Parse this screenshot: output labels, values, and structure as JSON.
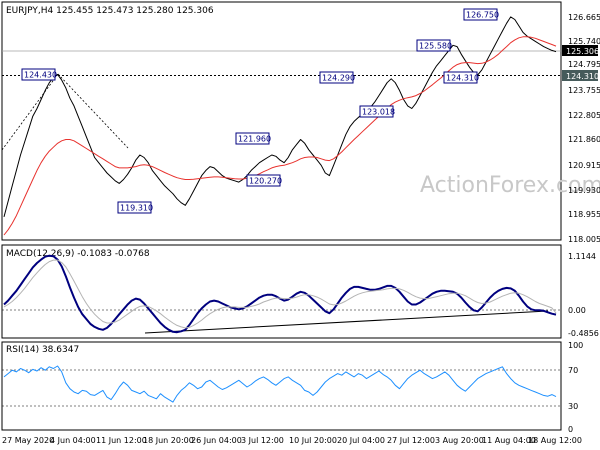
{
  "chart_data": [
    {
      "type": "candlestick",
      "title": "EURJPY,H4  125.455 125.473 125.280 125.306",
      "watermark": "ActionForex.com",
      "y_ticks": [
        "126.665",
        "125.740",
        "124.795",
        "123.755",
        "122.805",
        "121.860",
        "120.915",
        "119.930",
        "118.955",
        "118.005"
      ],
      "ylim": [
        118.005,
        126.665
      ],
      "current_price": "125.306",
      "support_level": "124.310",
      "annotations": [
        {
          "text": "124.430",
          "value": 124.43
        },
        {
          "text": "119.310",
          "value": 119.31
        },
        {
          "text": "121.960",
          "value": 121.96
        },
        {
          "text": "120.270",
          "value": 120.27
        },
        {
          "text": "124.290",
          "value": 124.29
        },
        {
          "text": "123.018",
          "value": 123.018
        },
        {
          "text": "125.580",
          "value": 125.58
        },
        {
          "text": "124.310",
          "value": 124.31
        },
        {
          "text": "126.750",
          "value": 126.75
        }
      ],
      "series": [
        {
          "key": "price",
          "color": "#000000",
          "values": [
            118.9,
            119.5,
            120.1,
            120.7,
            121.3,
            121.8,
            122.3,
            122.8,
            123.1,
            123.45,
            123.8,
            124.1,
            124.3,
            124.42,
            124.2,
            123.9,
            123.5,
            123.2,
            122.8,
            122.4,
            122.0,
            121.6,
            121.2,
            121.0,
            120.8,
            120.6,
            120.45,
            120.3,
            120.2,
            120.35,
            120.55,
            120.8,
            121.1,
            121.3,
            121.2,
            121.0,
            120.7,
            120.5,
            120.3,
            120.1,
            119.95,
            119.8,
            119.6,
            119.45,
            119.35,
            119.6,
            119.9,
            120.2,
            120.5,
            120.7,
            120.85,
            120.8,
            120.65,
            120.5,
            120.4,
            120.35,
            120.3,
            120.25,
            120.35,
            120.5,
            120.7,
            120.85,
            121.0,
            121.1,
            121.2,
            121.3,
            121.25,
            121.1,
            121.0,
            121.2,
            121.5,
            121.7,
            121.9,
            121.75,
            121.5,
            121.3,
            121.1,
            120.9,
            120.6,
            120.5,
            120.9,
            121.3,
            121.7,
            122.1,
            122.4,
            122.6,
            122.75,
            122.9,
            123.0,
            123.15,
            123.35,
            123.6,
            123.85,
            124.1,
            124.25,
            124.1,
            123.8,
            123.45,
            123.2,
            123.1,
            123.3,
            123.6,
            123.9,
            124.2,
            124.5,
            124.75,
            124.95,
            125.15,
            125.35,
            125.55,
            125.5,
            125.2,
            124.95,
            124.7,
            124.5,
            124.4,
            124.6,
            124.9,
            125.2,
            125.5,
            125.8,
            126.1,
            126.4,
            126.65,
            126.55,
            126.3,
            126.05,
            125.9,
            125.8,
            125.7,
            125.6,
            125.5,
            125.42,
            125.35,
            125.306
          ]
        },
        {
          "key": "ma",
          "color": "#e8322e",
          "values": [
            118.2,
            118.4,
            118.65,
            118.95,
            119.3,
            119.65,
            120.0,
            120.35,
            120.7,
            121.0,
            121.25,
            121.45,
            121.6,
            121.75,
            121.85,
            121.9,
            121.9,
            121.85,
            121.75,
            121.65,
            121.55,
            121.45,
            121.35,
            121.25,
            121.15,
            121.05,
            120.95,
            120.85,
            120.8,
            120.8,
            120.8,
            120.82,
            120.85,
            120.9,
            120.92,
            120.9,
            120.85,
            120.78,
            120.7,
            120.62,
            120.55,
            120.48,
            120.42,
            120.38,
            120.35,
            120.35,
            120.36,
            120.38,
            120.4,
            120.42,
            120.44,
            120.45,
            120.45,
            120.44,
            120.42,
            120.4,
            120.38,
            120.37,
            120.37,
            120.4,
            120.45,
            120.5,
            120.57,
            120.65,
            120.72,
            120.8,
            120.85,
            120.88,
            120.9,
            120.95,
            121.0,
            121.07,
            121.15,
            121.2,
            121.22,
            121.22,
            121.2,
            121.15,
            121.1,
            121.08,
            121.15,
            121.28,
            121.42,
            121.58,
            121.74,
            121.9,
            122.05,
            122.2,
            122.35,
            122.5,
            122.65,
            122.8,
            122.95,
            123.1,
            123.25,
            123.35,
            123.42,
            123.48,
            123.52,
            123.55,
            123.6,
            123.68,
            123.78,
            123.9,
            124.02,
            124.15,
            124.28,
            124.42,
            124.56,
            124.7,
            124.8,
            124.86,
            124.88,
            124.88,
            124.86,
            124.84,
            124.85,
            124.9,
            124.98,
            125.08,
            125.2,
            125.35,
            125.5,
            125.65,
            125.76,
            125.84,
            125.88,
            125.88,
            125.86,
            125.82,
            125.76,
            125.7,
            125.64,
            125.58,
            125.52
          ]
        }
      ]
    },
    {
      "type": "line",
      "title": "MACD(12,26,9) -0.1083 -0.0768",
      "y_ticks": [
        "1.1144",
        "0.00",
        "-0.4856"
      ],
      "ylim": [
        -0.4856,
        1.1144
      ],
      "series": [
        {
          "key": "macd",
          "color": "#00007f",
          "values": [
            0.1,
            0.18,
            0.28,
            0.38,
            0.5,
            0.62,
            0.74,
            0.86,
            0.95,
            1.02,
            1.08,
            1.1,
            1.09,
            1.02,
            0.88,
            0.68,
            0.45,
            0.24,
            0.05,
            -0.1,
            -0.2,
            -0.3,
            -0.36,
            -0.4,
            -0.42,
            -0.38,
            -0.3,
            -0.2,
            -0.1,
            0.0,
            0.1,
            0.18,
            0.22,
            0.2,
            0.12,
            0.02,
            -0.08,
            -0.18,
            -0.28,
            -0.36,
            -0.42,
            -0.46,
            -0.47,
            -0.45,
            -0.42,
            -0.32,
            -0.2,
            -0.08,
            0.02,
            0.1,
            0.16,
            0.18,
            0.16,
            0.12,
            0.08,
            0.04,
            0.02,
            0.0,
            0.02,
            0.06,
            0.12,
            0.18,
            0.24,
            0.28,
            0.3,
            0.3,
            0.27,
            0.22,
            0.18,
            0.2,
            0.26,
            0.32,
            0.36,
            0.34,
            0.28,
            0.2,
            0.12,
            0.04,
            -0.04,
            -0.08,
            0.0,
            0.12,
            0.24,
            0.34,
            0.42,
            0.46,
            0.46,
            0.44,
            0.42,
            0.4,
            0.4,
            0.42,
            0.45,
            0.48,
            0.48,
            0.44,
            0.36,
            0.26,
            0.16,
            0.1,
            0.1,
            0.14,
            0.2,
            0.26,
            0.32,
            0.36,
            0.38,
            0.38,
            0.37,
            0.36,
            0.32,
            0.24,
            0.14,
            0.05,
            -0.02,
            -0.04,
            0.04,
            0.14,
            0.24,
            0.32,
            0.38,
            0.42,
            0.44,
            0.43,
            0.38,
            0.28,
            0.16,
            0.06,
            0.0,
            -0.02,
            -0.02,
            -0.03,
            -0.06,
            -0.09,
            -0.1083
          ]
        },
        {
          "key": "signal",
          "color": "#b4b4b4",
          "values": [
            0.05,
            0.1,
            0.16,
            0.24,
            0.33,
            0.43,
            0.54,
            0.65,
            0.75,
            0.84,
            0.92,
            0.98,
            1.01,
            1.01,
            0.96,
            0.87,
            0.73,
            0.58,
            0.42,
            0.26,
            0.12,
            0.0,
            -0.1,
            -0.18,
            -0.25,
            -0.28,
            -0.28,
            -0.26,
            -0.22,
            -0.16,
            -0.1,
            -0.04,
            0.02,
            0.06,
            0.07,
            0.06,
            0.02,
            -0.03,
            -0.09,
            -0.16,
            -0.22,
            -0.28,
            -0.33,
            -0.36,
            -0.38,
            -0.37,
            -0.33,
            -0.28,
            -0.22,
            -0.15,
            -0.09,
            -0.04,
            0.0,
            0.03,
            0.05,
            0.05,
            0.05,
            0.04,
            0.04,
            0.04,
            0.06,
            0.08,
            0.11,
            0.15,
            0.18,
            0.21,
            0.23,
            0.23,
            0.22,
            0.22,
            0.23,
            0.25,
            0.28,
            0.3,
            0.3,
            0.28,
            0.25,
            0.21,
            0.16,
            0.11,
            0.09,
            0.1,
            0.13,
            0.17,
            0.22,
            0.27,
            0.31,
            0.34,
            0.36,
            0.37,
            0.38,
            0.39,
            0.4,
            0.42,
            0.43,
            0.43,
            0.42,
            0.39,
            0.35,
            0.3,
            0.26,
            0.23,
            0.22,
            0.22,
            0.24,
            0.26,
            0.28,
            0.3,
            0.32,
            0.33,
            0.33,
            0.31,
            0.28,
            0.23,
            0.18,
            0.14,
            0.12,
            0.13,
            0.15,
            0.19,
            0.23,
            0.27,
            0.3,
            0.33,
            0.34,
            0.33,
            0.3,
            0.26,
            0.21,
            0.16,
            0.12,
            0.09,
            0.06,
            0.03,
            -0.0768
          ]
        }
      ]
    },
    {
      "type": "line",
      "title": "RSI(14) 38.6347",
      "y_ticks": [
        "100",
        "70",
        "30",
        "0"
      ],
      "ylim": [
        0,
        100
      ],
      "levels": [
        70,
        30
      ],
      "series": [
        {
          "key": "rsi",
          "color": "#1e90ff",
          "values": [
            62,
            66,
            70,
            68,
            72,
            70,
            67,
            71,
            69,
            73,
            70,
            74,
            72,
            75,
            68,
            55,
            48,
            44,
            42,
            46,
            45,
            41,
            40,
            43,
            46,
            38,
            35,
            42,
            50,
            56,
            52,
            46,
            44,
            42,
            45,
            40,
            38,
            36,
            42,
            38,
            35,
            32,
            40,
            46,
            50,
            55,
            52,
            48,
            50,
            56,
            58,
            54,
            50,
            47,
            49,
            52,
            55,
            58,
            54,
            50,
            53,
            57,
            60,
            62,
            59,
            55,
            52,
            56,
            60,
            62,
            58,
            55,
            52,
            46,
            44,
            40,
            44,
            50,
            56,
            60,
            63,
            66,
            64,
            68,
            65,
            62,
            66,
            64,
            60,
            63,
            66,
            69,
            65,
            62,
            58,
            52,
            48,
            54,
            60,
            64,
            67,
            70,
            66,
            63,
            60,
            62,
            65,
            68,
            64,
            58,
            52,
            48,
            45,
            50,
            55,
            60,
            63,
            66,
            68,
            70,
            72,
            74,
            66,
            60,
            55,
            52,
            50,
            48,
            46,
            44,
            42,
            40,
            39,
            41,
            38.6
          ]
        }
      ]
    }
  ],
  "x_labels": [
    "27 May 2020",
    "4 Jun 04:00",
    "11 Jun 12:00",
    "18 Jun 20:00",
    "26 Jun 04:00",
    "3 Jul 12:00",
    "10 Jul 20:00",
    "20 Jul 04:00",
    "27 Jul 12:00",
    "3 Aug 20:00",
    "11 Aug 04:00",
    "18 Aug 12:00"
  ]
}
